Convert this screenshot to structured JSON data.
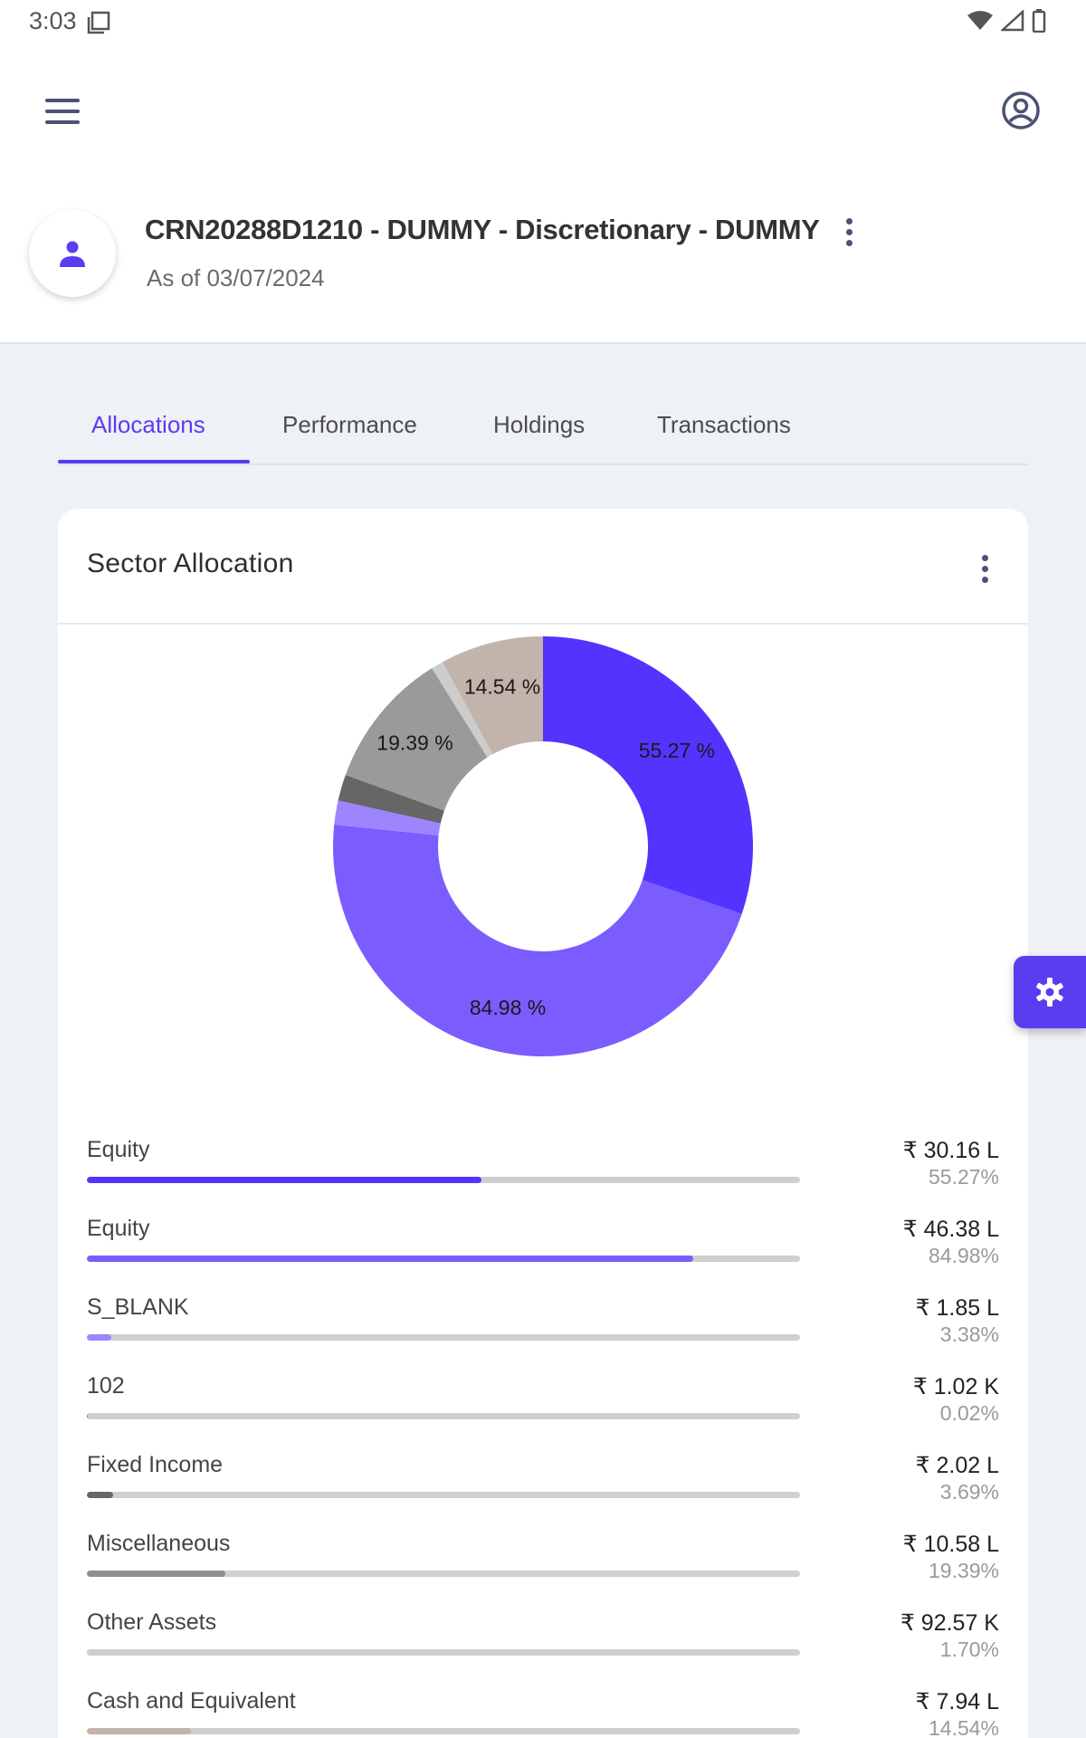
{
  "status_bar": {
    "time": "3:03"
  },
  "header": {
    "account_title": "CRN20288D1210 - DUMMY - Discretionary - DUMMY",
    "as_of": "As of 03/07/2024"
  },
  "tabs": [
    {
      "label": "Allocations",
      "active": true
    },
    {
      "label": "Performance",
      "active": false
    },
    {
      "label": "Holdings",
      "active": false
    },
    {
      "label": "Transactions",
      "active": false
    }
  ],
  "card": {
    "title": "Sector Allocation"
  },
  "chart_data": {
    "type": "pie",
    "donut": true,
    "slices": [
      {
        "value": 55.27,
        "label": "55.27 %",
        "color": "#5533ff"
      },
      {
        "value": 84.98,
        "label": "84.98 %",
        "color": "#7a5cff"
      },
      {
        "value": 3.38,
        "label": "",
        "color": "#9c85ff"
      },
      {
        "value": 3.69,
        "label": "",
        "color": "#666666"
      },
      {
        "value": 19.39,
        "label": "19.39 %",
        "color": "#9a9a9a"
      },
      {
        "value": 1.7,
        "label": "",
        "color": "#cccccc"
      },
      {
        "value": 14.54,
        "label": "14.54 %",
        "color": "#c2b3ab"
      }
    ]
  },
  "allocations": [
    {
      "label": "Equity",
      "amount": "₹ 30.16 L",
      "percent": "55.27%",
      "fraction": 0.5527,
      "color": "#5533ff"
    },
    {
      "label": "Equity",
      "amount": "₹ 46.38 L",
      "percent": "84.98%",
      "fraction": 0.8498,
      "color": "#7a5cff"
    },
    {
      "label": "S_BLANK",
      "amount": "₹ 1.85 L",
      "percent": "3.38%",
      "fraction": 0.0338,
      "color": "#9c85ff"
    },
    {
      "label": "102",
      "amount": "₹ 1.02 K",
      "percent": "0.02%",
      "fraction": 0.0002,
      "color": "#888888"
    },
    {
      "label": "Fixed Income",
      "amount": "₹ 2.02 L",
      "percent": "3.69%",
      "fraction": 0.0369,
      "color": "#666666"
    },
    {
      "label": "Miscellaneous",
      "amount": "₹ 10.58 L",
      "percent": "19.39%",
      "fraction": 0.1939,
      "color": "#8f8f8f"
    },
    {
      "label": "Other Assets",
      "amount": "₹ 92.57 K",
      "percent": "1.70%",
      "fraction": 0.017,
      "color": "#cccccc"
    },
    {
      "label": "Cash and Equivalent",
      "amount": "₹ 7.94 L",
      "percent": "14.54%",
      "fraction": 0.1454,
      "color": "#c2b3ab"
    }
  ]
}
